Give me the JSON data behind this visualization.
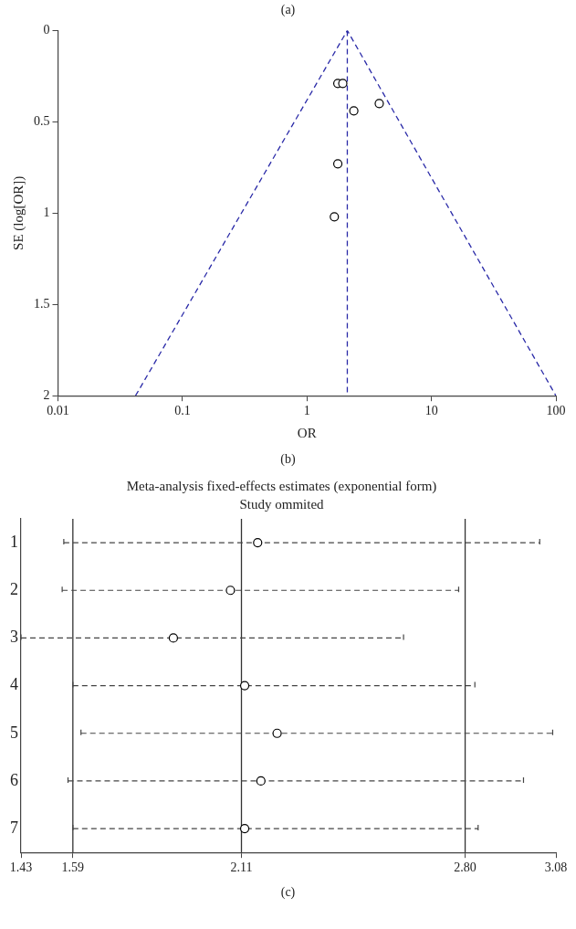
{
  "chart_data": [
    {
      "type": "scatter",
      "xlabel": "OR",
      "ylabel": "SE (log[OR])",
      "annotations": [
        "(a)",
        "(b)"
      ],
      "log": "x",
      "xlim": [
        0.01,
        100
      ],
      "xticks": [
        0.01,
        0.1,
        1,
        10,
        100
      ],
      "ylim": [
        2,
        0
      ],
      "yticks": [
        0,
        0.5,
        1,
        1.5,
        2
      ],
      "grid": false,
      "legend": false,
      "marker": "circle",
      "series": [
        {
          "type": "scatter",
          "color": "#000000",
          "x": [
            1.77,
            1.94,
            2.38,
            3.81,
            1.77,
            1.66
          ],
          "values": [
            0.29,
            0.29,
            0.44,
            0.4,
            0.73,
            1.02
          ]
        },
        {
          "type": "line",
          "color": "#2b2ba8",
          "line_style": "dashed",
          "marker": "none",
          "x": [
            0.042,
            2.11,
            100
          ],
          "values": [
            2,
            0,
            2
          ]
        }
      ],
      "ref_lines": [
        {
          "axis": "x",
          "value": 2.11,
          "color": "#2b2ba8",
          "line_style": "dashed"
        }
      ]
    },
    {
      "type": "scatter",
      "orientation": "horizontal",
      "title": "Meta-analysis fixed-effects estimates (exponential form)",
      "subtitle": "Study ommited",
      "annotations": [
        "(c)"
      ],
      "categories": [
        "1",
        "2",
        "3",
        "4",
        "5",
        "6",
        "7"
      ],
      "values": [
        2.16,
        2.076,
        1.9,
        2.12,
        2.22,
        2.17,
        2.12
      ],
      "errors": [
        [
          1.562,
          3.03
        ],
        [
          1.557,
          2.78
        ],
        [
          1.43,
          2.61
        ],
        [
          1.59,
          2.83
        ],
        [
          1.615,
          3.07
        ],
        [
          1.575,
          2.98
        ],
        [
          1.59,
          2.84
        ]
      ],
      "color": "#000000",
      "line_style": "dashed",
      "marker": "circle",
      "grid": false,
      "legend": false,
      "xlim": [
        1.43,
        3.08
      ],
      "xticks": [
        1.43,
        1.59,
        2.11,
        {
          "value": 2.8,
          "label": "2.80"
        },
        3.08
      ],
      "ref_lines": [
        {
          "axis": "x",
          "value": 1.59,
          "color": "#333333"
        },
        {
          "axis": "x",
          "value": 2.11,
          "color": "#333333"
        },
        {
          "axis": "x",
          "value": 2.8,
          "color": "#333333"
        }
      ]
    }
  ]
}
